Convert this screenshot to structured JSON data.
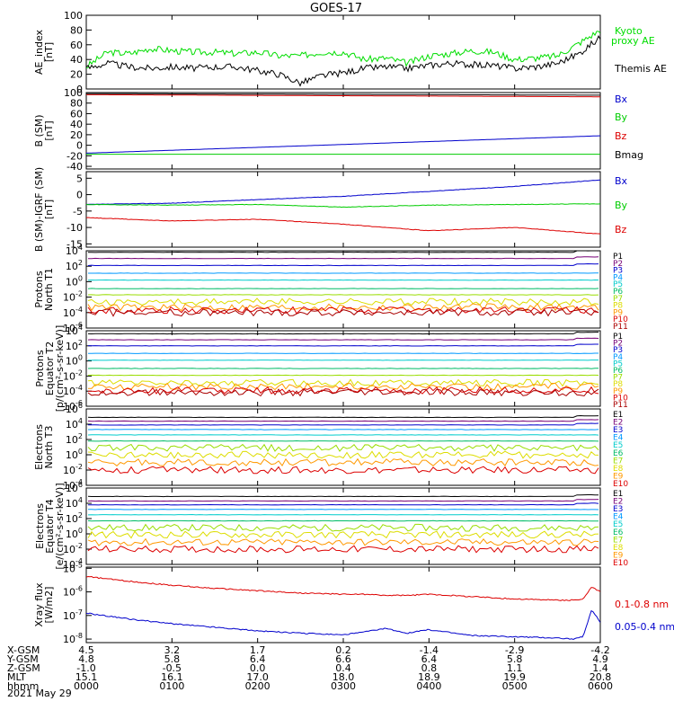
{
  "title": "GOES-17",
  "date_label": "2021 May 29",
  "orbit": {
    "rows": [
      {
        "label": "X-GSM",
        "values": [
          "4.5",
          "3.2",
          "1.7",
          "0.2",
          "-1.4",
          "-2.9",
          "-4.2"
        ]
      },
      {
        "label": "Y-GSM",
        "values": [
          "4.8",
          "5.8",
          "6.4",
          "6.6",
          "6.4",
          "5.8",
          "4.9"
        ]
      },
      {
        "label": "Z-GSM",
        "values": [
          "-1.0",
          "-0.5",
          "0.0",
          "0.4",
          "0.8",
          "1.1",
          "1.4"
        ]
      },
      {
        "label": "MLT",
        "values": [
          "15.1",
          "16.1",
          "17.0",
          "18.0",
          "18.9",
          "19.9",
          "20.8"
        ]
      },
      {
        "label": "hhmm",
        "values": [
          "0000",
          "0100",
          "0200",
          "0300",
          "0400",
          "0500",
          "0600"
        ]
      }
    ]
  },
  "chart_data": [
    {
      "type": "line",
      "ylabel": "AE_index\n[nT]",
      "ylim": [
        0,
        100
      ],
      "yticks": [
        "0",
        "20",
        "40",
        "60",
        "80",
        "100"
      ],
      "x_hours": [
        0,
        0.25,
        0.5,
        0.75,
        1,
        1.25,
        1.5,
        1.75,
        2,
        2.25,
        2.5,
        2.75,
        3,
        3.25,
        3.5,
        3.75,
        4,
        4.25,
        4.5,
        4.75,
        5,
        5.25,
        5.5,
        5.75,
        6
      ],
      "series": [
        {
          "name": "Kyoto proxy AE",
          "color": "#00dd00",
          "values": [
            30,
            50,
            48,
            55,
            52,
            50,
            50,
            48,
            50,
            45,
            45,
            50,
            50,
            40,
            42,
            35,
            45,
            48,
            52,
            50,
            40,
            42,
            45,
            62,
            80
          ]
        },
        {
          "name": "Themis AE",
          "color": "#000000",
          "values": [
            28,
            35,
            30,
            28,
            30,
            28,
            30,
            30,
            25,
            20,
            8,
            18,
            22,
            28,
            30,
            28,
            32,
            35,
            33,
            32,
            28,
            30,
            35,
            48,
            70
          ]
        }
      ]
    },
    {
      "type": "line",
      "ylabel": "B (SM)\n[nT]",
      "ylim": [
        -45,
        100
      ],
      "yticks": [
        "-40",
        "-20",
        "0",
        "20",
        "40",
        "60",
        "80",
        "100"
      ],
      "x_hours": [
        0,
        6
      ],
      "series": [
        {
          "name": "Bx",
          "color": "#0000cc",
          "values": [
            -15,
            18
          ]
        },
        {
          "name": "By",
          "color": "#00cc00",
          "values": [
            -17,
            -17
          ]
        },
        {
          "name": "Bz",
          "color": "#dd0000",
          "values": [
            96,
            92
          ]
        },
        {
          "name": "Bmag",
          "color": "#000000",
          "values": [
            98,
            95
          ]
        }
      ]
    },
    {
      "type": "line",
      "ylabel": "B (SM)-IGRF (SM)\n[nT]",
      "ylim": [
        -16,
        7
      ],
      "yticks": [
        "-15",
        "-10",
        "-5",
        "0",
        "5"
      ],
      "x_hours": [
        0,
        1,
        2,
        3,
        4,
        5,
        6
      ],
      "series": [
        {
          "name": "Bx",
          "color": "#0000cc",
          "values": [
            -3,
            -2.6,
            -1.5,
            -0.5,
            1.0,
            2.5,
            4.5
          ]
        },
        {
          "name": "By",
          "color": "#00cc00",
          "values": [
            -3.0,
            -3.2,
            -3.0,
            -3.8,
            -3.2,
            -3.0,
            -2.8
          ]
        },
        {
          "name": "Bz",
          "color": "#dd0000",
          "values": [
            -7.0,
            -8.0,
            -7.5,
            -9.0,
            -11.0,
            -10.0,
            -12.0
          ]
        }
      ]
    },
    {
      "type": "line",
      "ylabel": "Protons\nNorth T1",
      "yscale": "log",
      "ylim_exp": [
        -6,
        4
      ],
      "ytick_exps": [
        -6,
        -4,
        -2,
        0,
        2,
        4
      ],
      "channel_labels": [
        "P1",
        "P2",
        "P3",
        "P4",
        "P5",
        "P6",
        "P7",
        "P8",
        "P9",
        "P10",
        "P11"
      ],
      "channel_colors": [
        "#000000",
        "#770077",
        "#0000cc",
        "#0099ff",
        "#00cccc",
        "#00bb66",
        "#99dd00",
        "#dddd00",
        "#ff9900",
        "#dd0000",
        "#aa0000"
      ],
      "channel_exps": [
        3.8,
        3.0,
        2.1,
        1.1,
        0.2,
        -0.9,
        -1.7,
        -2.6,
        -3.3,
        -3.7,
        -4.0
      ]
    },
    {
      "type": "line",
      "ylabel": "Protons\nEquator T2\n[p/(cm²-s-sr-keV)]",
      "yscale": "log",
      "ylim_exp": [
        -6,
        4
      ],
      "ytick_exps": [
        -6,
        -4,
        -2,
        0,
        2,
        4
      ],
      "channel_labels": [
        "P1",
        "P2",
        "P3",
        "P4",
        "P5",
        "P6",
        "P7",
        "P8",
        "P9",
        "P10",
        "P11"
      ],
      "channel_colors": [
        "#000000",
        "#770077",
        "#0000cc",
        "#0099ff",
        "#00cccc",
        "#00bb66",
        "#99dd00",
        "#dddd00",
        "#ff9900",
        "#dd0000",
        "#aa0000"
      ],
      "channel_exps": [
        3.6,
        2.8,
        2.0,
        1.0,
        0.1,
        -1.0,
        -1.9,
        -2.9,
        -3.4,
        -3.9,
        -4.2
      ]
    },
    {
      "type": "line",
      "ylabel": "Electrons\nNorth T3",
      "yscale": "log",
      "ylim_exp": [
        -4,
        6
      ],
      "ytick_exps": [
        -4,
        -2,
        0,
        2,
        4,
        6
      ],
      "channel_labels": [
        "E1",
        "E2",
        "E3",
        "E4",
        "E5",
        "E6",
        "E7",
        "E8",
        "E9",
        "E10"
      ],
      "channel_colors": [
        "#000000",
        "#770077",
        "#0000cc",
        "#0099ff",
        "#00cccc",
        "#00bb66",
        "#99dd00",
        "#dddd00",
        "#ff9900",
        "#dd0000"
      ],
      "channel_exps": [
        4.9,
        4.4,
        3.9,
        3.3,
        2.6,
        1.8,
        0.9,
        0.0,
        -1.0,
        -2.0
      ]
    },
    {
      "type": "line",
      "ylabel": "Electrons\nEquator T4\n[e/(cm²-s-sr-keV)]",
      "yscale": "log",
      "ylim_exp": [
        -4,
        6
      ],
      "ytick_exps": [
        -4,
        -2,
        0,
        2,
        4,
        6
      ],
      "channel_labels": [
        "E1",
        "E2",
        "E3",
        "E4",
        "E5",
        "E6",
        "E7",
        "E8",
        "E9",
        "E10"
      ],
      "channel_colors": [
        "#000000",
        "#770077",
        "#0000cc",
        "#0099ff",
        "#00cccc",
        "#00bb66",
        "#99dd00",
        "#dddd00",
        "#ff9900",
        "#dd0000"
      ],
      "channel_exps": [
        4.9,
        4.3,
        3.8,
        3.2,
        2.5,
        1.7,
        0.8,
        -0.1,
        -1.1,
        -2.0
      ]
    },
    {
      "type": "line",
      "ylabel": "Xray flux\n[W/m2]",
      "yscale": "log",
      "ylim_exp": [
        -8.15,
        -4.95
      ],
      "ytick_exps": [
        -8,
        -7,
        -6,
        -5
      ],
      "x_hours": [
        0,
        0.5,
        1,
        1.5,
        2,
        2.5,
        3,
        3.25,
        3.5,
        3.75,
        4,
        4.5,
        5,
        5.5,
        5.7,
        5.8,
        5.9,
        6
      ],
      "series": [
        {
          "name": "0.1-0.8 nm",
          "color": "#dd0000",
          "exps": [
            -5.35,
            -5.55,
            -5.72,
            -5.85,
            -5.95,
            -6.05,
            -6.1,
            -6.1,
            -6.15,
            -6.15,
            -6.1,
            -6.2,
            -6.3,
            -6.35,
            -6.35,
            -6.3,
            -5.8,
            -6.0
          ]
        },
        {
          "name": "0.05-0.4 nm",
          "color": "#0000cc",
          "exps": [
            -6.9,
            -7.15,
            -7.35,
            -7.5,
            -7.65,
            -7.75,
            -7.82,
            -7.7,
            -7.55,
            -7.75,
            -7.6,
            -7.85,
            -7.9,
            -7.95,
            -8.0,
            -7.9,
            -6.75,
            -7.3
          ]
        }
      ]
    }
  ]
}
